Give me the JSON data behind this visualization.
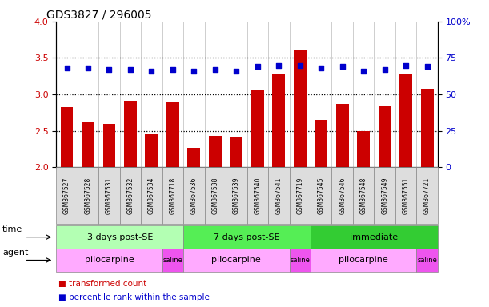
{
  "title": "GDS3827 / 296005",
  "samples": [
    "GSM367527",
    "GSM367528",
    "GSM367531",
    "GSM367532",
    "GSM367534",
    "GSM367718",
    "GSM367536",
    "GSM367538",
    "GSM367539",
    "GSM367540",
    "GSM367541",
    "GSM367719",
    "GSM367545",
    "GSM367546",
    "GSM367548",
    "GSM367549",
    "GSM367551",
    "GSM367721"
  ],
  "bar_values": [
    2.82,
    2.62,
    2.6,
    2.91,
    2.46,
    2.9,
    2.27,
    2.43,
    2.42,
    3.07,
    3.27,
    3.6,
    2.65,
    2.87,
    2.5,
    2.84,
    3.27,
    3.08
  ],
  "dot_values": [
    68,
    68,
    67,
    67,
    66,
    67,
    66,
    67,
    66,
    69,
    70,
    70,
    68,
    69,
    66,
    67,
    70,
    69
  ],
  "bar_color": "#cc0000",
  "dot_color": "#0000cc",
  "ylim_left": [
    2.0,
    4.0
  ],
  "ylim_right": [
    0,
    100
  ],
  "yticks_left": [
    2.0,
    2.5,
    3.0,
    3.5,
    4.0
  ],
  "yticks_right": [
    0,
    25,
    50,
    75,
    100
  ],
  "hlines": [
    2.5,
    3.0,
    3.5
  ],
  "time_groups": [
    {
      "label": "3 days post-SE",
      "start": 0,
      "end": 5,
      "color": "#b3ffb3"
    },
    {
      "label": "7 days post-SE",
      "start": 6,
      "end": 11,
      "color": "#55ee55"
    },
    {
      "label": "immediate",
      "start": 12,
      "end": 17,
      "color": "#33cc33"
    }
  ],
  "agent_groups": [
    {
      "label": "pilocarpine",
      "start": 0,
      "end": 4,
      "color": "#ffaaff"
    },
    {
      "label": "saline",
      "start": 5,
      "end": 5,
      "color": "#ee55ee"
    },
    {
      "label": "pilocarpine",
      "start": 6,
      "end": 10,
      "color": "#ffaaff"
    },
    {
      "label": "saline",
      "start": 11,
      "end": 11,
      "color": "#ee55ee"
    },
    {
      "label": "pilocarpine",
      "start": 12,
      "end": 16,
      "color": "#ffaaff"
    },
    {
      "label": "saline",
      "start": 17,
      "end": 17,
      "color": "#ee55ee"
    }
  ],
  "legend_bar_label": "transformed count",
  "legend_dot_label": "percentile rank within the sample",
  "time_label": "time",
  "agent_label": "agent",
  "background_color": "#ffffff",
  "plot_bg_color": "#ffffff",
  "tick_label_bg": "#dddddd"
}
